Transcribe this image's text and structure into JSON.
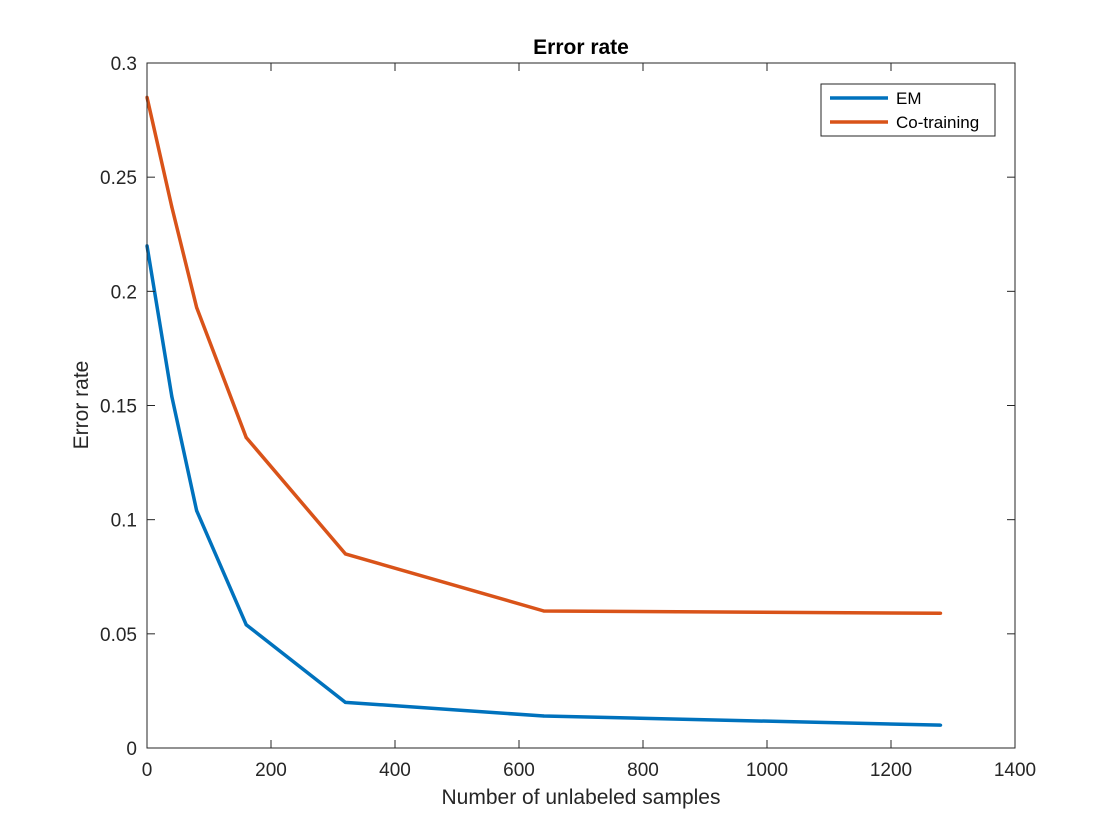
{
  "chart_data": {
    "type": "line",
    "title": "Error rate",
    "xlabel": "Number of unlabeled samples",
    "ylabel": "Error rate",
    "xlim": [
      0,
      1400
    ],
    "ylim": [
      0,
      0.3
    ],
    "xticks": [
      0,
      200,
      400,
      600,
      800,
      1000,
      1200,
      1400
    ],
    "xtick_labels": [
      "0",
      "200",
      "400",
      "600",
      "800",
      "1000",
      "1200",
      "1400"
    ],
    "yticks": [
      0,
      0.05,
      0.1,
      0.15,
      0.2,
      0.25,
      0.3
    ],
    "ytick_labels": [
      "0",
      "0.05",
      "0.1",
      "0.15",
      "0.2",
      "0.25",
      "0.3"
    ],
    "grid": false,
    "legend_position": "top-right",
    "x": [
      0,
      40,
      80,
      160,
      320,
      640,
      1280
    ],
    "series": [
      {
        "name": "EM",
        "color": "#0072bd",
        "values": [
          0.22,
          0.154,
          0.104,
          0.054,
          0.02,
          0.014,
          0.01
        ]
      },
      {
        "name": "Co-training",
        "color": "#d95319",
        "values": [
          0.285,
          0.237,
          0.193,
          0.136,
          0.085,
          0.06,
          0.059
        ]
      }
    ]
  }
}
